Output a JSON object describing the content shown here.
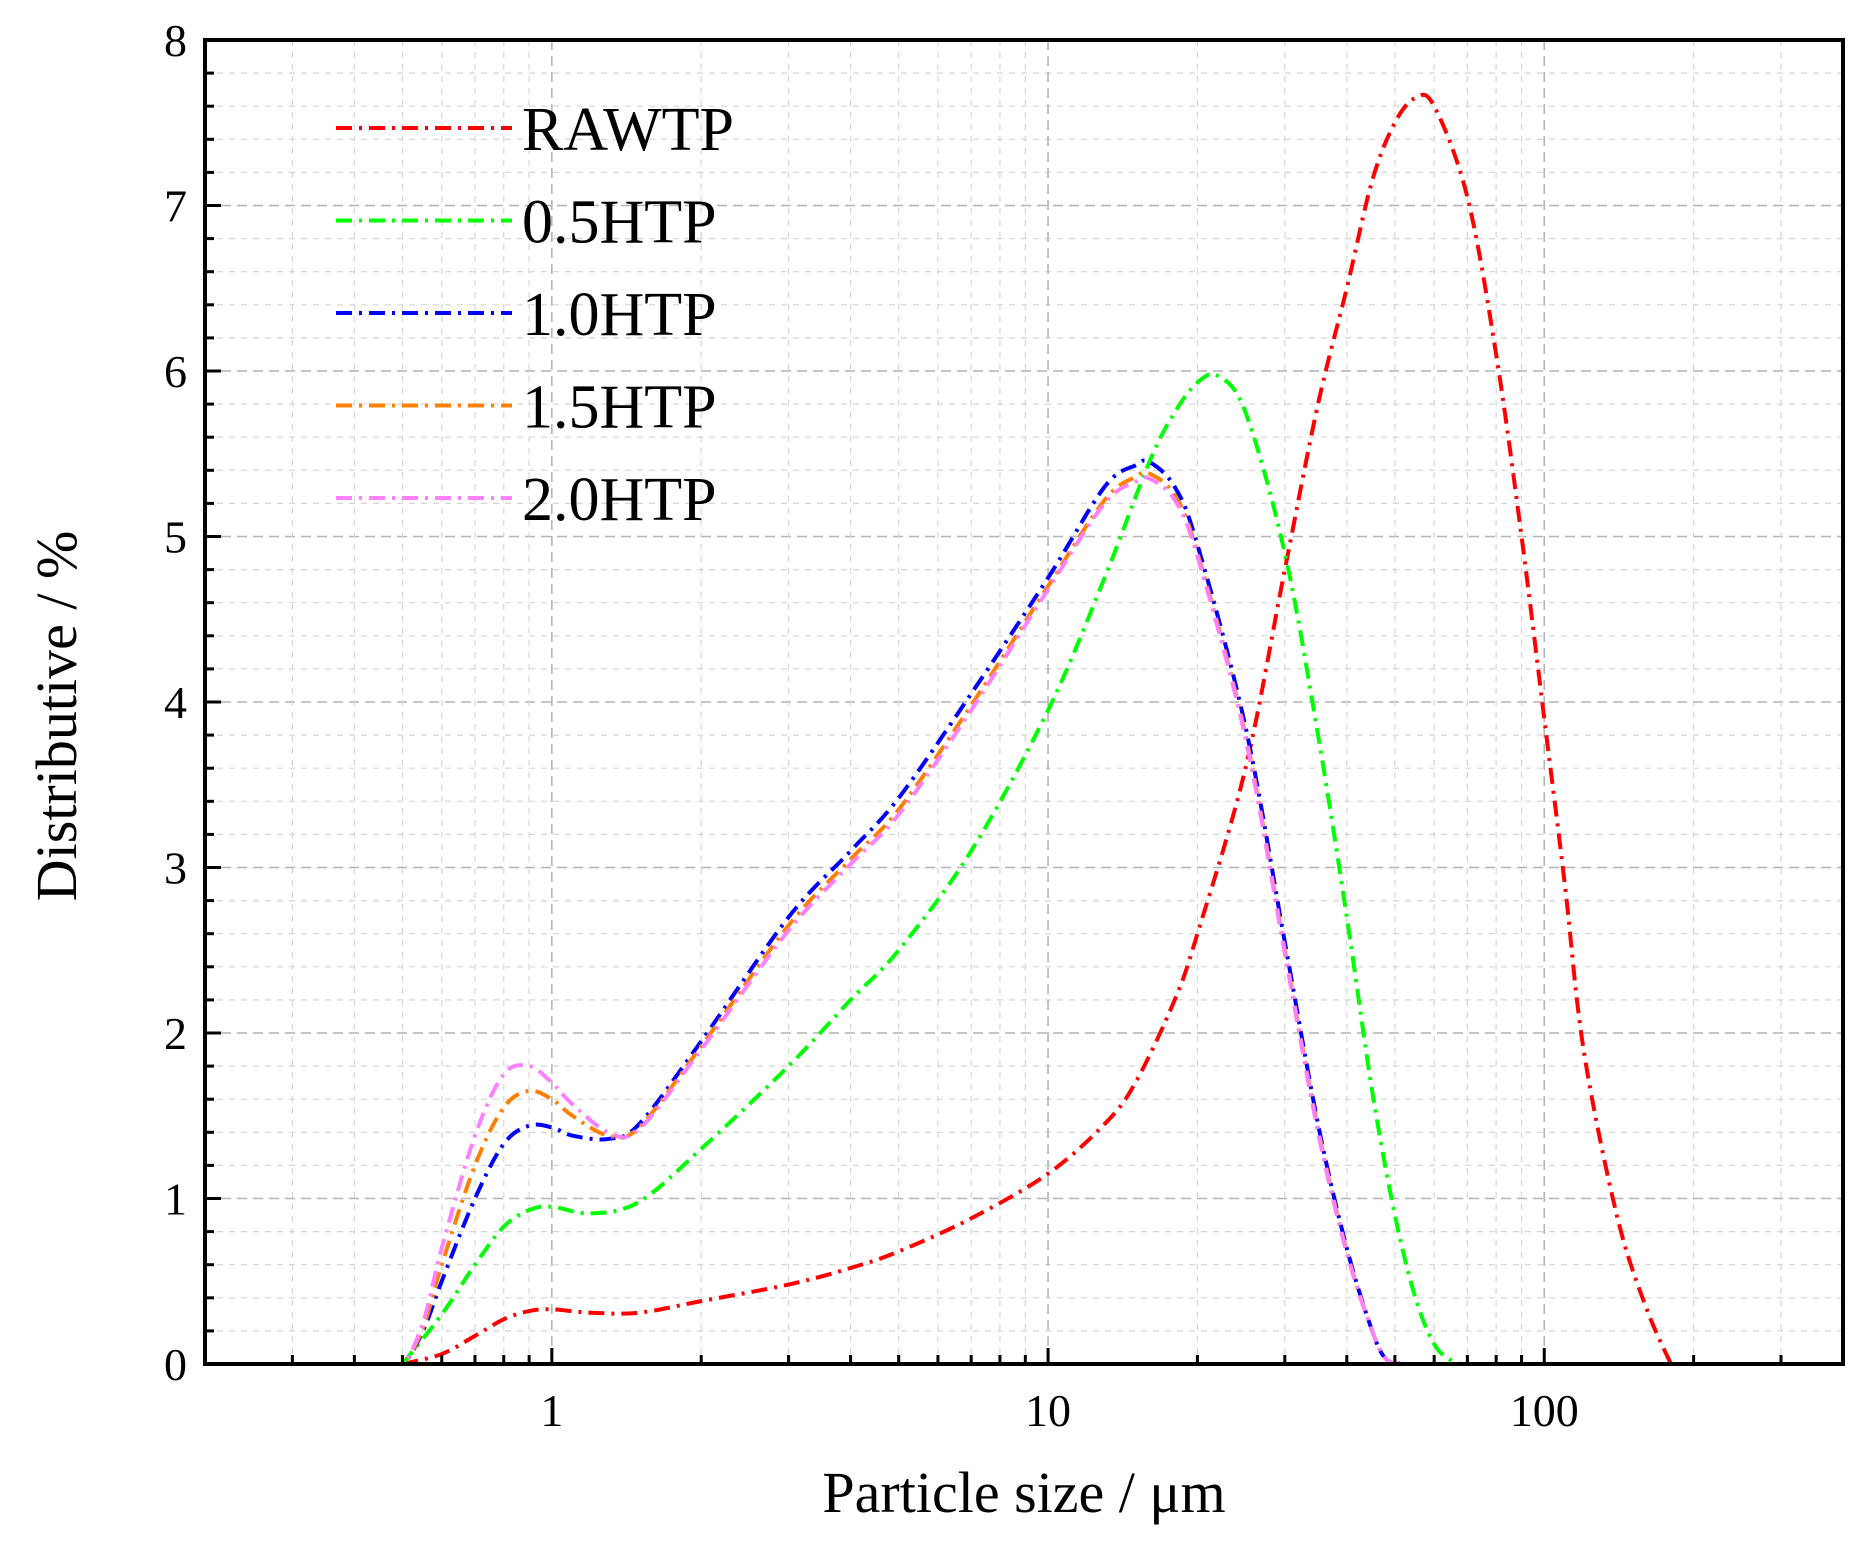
{
  "chart_data": {
    "type": "line",
    "title": "",
    "xlabel": "Particle size / μm",
    "ylabel": "Distributive / %",
    "xscale": "log",
    "xlim": [
      0.2,
      400
    ],
    "ylim": [
      0,
      8
    ],
    "x_ticks": [
      {
        "value": 1,
        "label": "1"
      },
      {
        "value": 10,
        "label": "10"
      },
      {
        "value": 100,
        "label": "100"
      }
    ],
    "y_ticks": [
      {
        "value": 0,
        "label": "0"
      },
      {
        "value": 1,
        "label": "1"
      },
      {
        "value": 2,
        "label": "2"
      },
      {
        "value": 3,
        "label": "3"
      },
      {
        "value": 4,
        "label": "4"
      },
      {
        "value": 5,
        "label": "5"
      },
      {
        "value": 6,
        "label": "6"
      },
      {
        "value": 7,
        "label": "7"
      },
      {
        "value": 8,
        "label": "8"
      }
    ],
    "grid": true,
    "legend_position": "top-left",
    "series": [
      {
        "name": "RAWTP",
        "color": "#ff0000",
        "x": [
          0.5,
          0.6,
          0.7,
          0.8,
          0.9,
          1.0,
          1.2,
          1.5,
          2.0,
          3.0,
          4.0,
          5.0,
          7.0,
          10.0,
          13.0,
          15.0,
          18.0,
          20.0,
          25.0,
          30.0,
          35.0,
          40.0,
          45.0,
          50.0,
          55.0,
          60.0,
          70.0,
          80.0,
          90.0,
          100.0,
          110.0,
          120.0,
          140.0,
          160.0,
          180.0
        ],
        "y": [
          0.0,
          0.06,
          0.17,
          0.27,
          0.32,
          0.33,
          0.31,
          0.31,
          0.38,
          0.48,
          0.58,
          0.68,
          0.88,
          1.15,
          1.45,
          1.7,
          2.2,
          2.6,
          3.6,
          4.8,
          5.8,
          6.5,
          7.15,
          7.5,
          7.65,
          7.6,
          7.05,
          6.1,
          5.0,
          3.9,
          2.9,
          1.9,
          0.9,
          0.35,
          0.0
        ]
      },
      {
        "name": "0.5HTP",
        "color": "#00ff00",
        "x": [
          0.5,
          0.6,
          0.7,
          0.8,
          0.9,
          1.0,
          1.2,
          1.5,
          2.0,
          3.0,
          4.0,
          5.0,
          7.0,
          10.0,
          13.0,
          16.0,
          18.0,
          20.0,
          22.0,
          25.0,
          30.0,
          35.0,
          40.0,
          45.0,
          50.0,
          55.0,
          60.0,
          65.0,
          68.0
        ],
        "y": [
          0.0,
          0.3,
          0.6,
          0.83,
          0.93,
          0.95,
          0.91,
          0.98,
          1.3,
          1.8,
          2.2,
          2.5,
          3.1,
          3.95,
          4.75,
          5.45,
          5.75,
          5.93,
          5.97,
          5.75,
          4.9,
          3.8,
          2.7,
          1.65,
          0.9,
          0.4,
          0.12,
          0.02,
          0.0
        ]
      },
      {
        "name": "1.0HTP",
        "color": "#0000ff",
        "x": [
          0.4,
          0.45,
          0.5,
          0.55,
          0.6,
          0.7,
          0.8,
          0.9,
          1.0,
          1.1,
          1.3,
          1.5,
          2.0,
          3.0,
          4.0,
          5.0,
          7.0,
          10.0,
          13.0,
          15.0,
          16.0,
          18.0,
          20.0,
          25.0,
          30.0,
          35.0,
          40.0,
          45.0,
          48.0,
          52.0,
          60.0
        ],
        "y": [
          0.0,
          0.0,
          0.0,
          0.2,
          0.5,
          1.0,
          1.33,
          1.44,
          1.43,
          1.38,
          1.36,
          1.45,
          1.95,
          2.7,
          3.1,
          3.42,
          4.05,
          4.75,
          5.3,
          5.43,
          5.45,
          5.3,
          4.95,
          3.85,
          2.55,
          1.45,
          0.7,
          0.2,
          0.03,
          0.0,
          0.0
        ]
      },
      {
        "name": "1.5HTP",
        "color": "#ff8000",
        "x": [
          0.4,
          0.45,
          0.5,
          0.55,
          0.6,
          0.7,
          0.8,
          0.9,
          1.0,
          1.1,
          1.3,
          1.5,
          2.0,
          3.0,
          4.0,
          5.0,
          7.0,
          10.0,
          13.0,
          15.0,
          16.0,
          18.0,
          20.0,
          25.0,
          30.0,
          35.0,
          40.0,
          45.0,
          48.0,
          52.0,
          60.0
        ],
        "y": [
          0.0,
          0.0,
          0.0,
          0.22,
          0.6,
          1.2,
          1.55,
          1.65,
          1.6,
          1.5,
          1.38,
          1.43,
          1.92,
          2.65,
          3.05,
          3.35,
          3.98,
          4.7,
          5.22,
          5.36,
          5.38,
          5.25,
          4.9,
          3.8,
          2.5,
          1.42,
          0.68,
          0.2,
          0.03,
          0.0,
          0.0
        ]
      },
      {
        "name": "2.0HTP",
        "color": "#ff80ff",
        "x": [
          0.4,
          0.45,
          0.5,
          0.55,
          0.6,
          0.7,
          0.8,
          0.9,
          1.0,
          1.1,
          1.3,
          1.5,
          2.0,
          3.0,
          4.0,
          5.0,
          7.0,
          10.0,
          13.0,
          15.0,
          16.0,
          18.0,
          20.0,
          25.0,
          30.0,
          35.0,
          40.0,
          45.0,
          48.0,
          52.0,
          60.0
        ],
        "y": [
          0.0,
          0.0,
          0.0,
          0.25,
          0.7,
          1.38,
          1.75,
          1.8,
          1.7,
          1.57,
          1.4,
          1.42,
          1.9,
          2.62,
          3.02,
          3.32,
          3.95,
          4.68,
          5.2,
          5.33,
          5.35,
          5.22,
          4.88,
          3.78,
          2.48,
          1.4,
          0.67,
          0.2,
          0.03,
          0.0,
          0.0
        ]
      }
    ]
  }
}
